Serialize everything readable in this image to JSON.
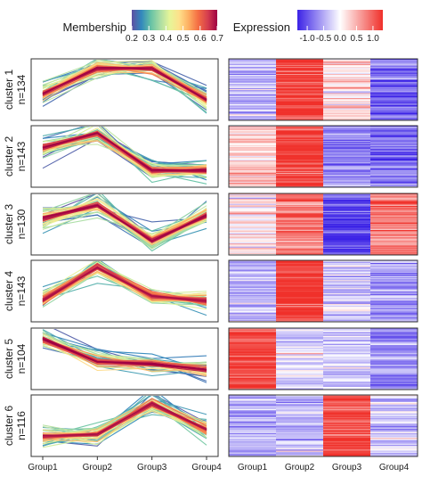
{
  "legends": {
    "membership": {
      "title": "Membership",
      "ticks": [
        "0.2",
        "0.3",
        "0.4",
        "0.5",
        "0.6",
        "0.7"
      ],
      "range": [
        0.2,
        0.7
      ],
      "colors": [
        "#5e4fa2",
        "#3288bd",
        "#66c2a5",
        "#abdda4",
        "#e6f598",
        "#fee08b",
        "#fdae61",
        "#f46d43",
        "#d53e4f",
        "#9e0142"
      ]
    },
    "expression": {
      "title": "Expression",
      "ticks": [
        "-1.0",
        "-0.5",
        "0.0",
        "0.5",
        "1.0"
      ],
      "range": [
        -1.3,
        1.3
      ],
      "colors": [
        "#3b22e6",
        "#ffffff",
        "#f0302a"
      ]
    }
  },
  "chart_data": [
    {
      "type": "line",
      "panel": "cluster-profiles",
      "x": [
        "Group1",
        "Group2",
        "Group3",
        "Group4"
      ],
      "clusters": [
        {
          "label": "cluster 1",
          "n_label": "n=134",
          "n": 134,
          "center": [
            -0.3,
            1.45,
            1.45,
            -0.7
          ]
        },
        {
          "label": "cluster 2",
          "n_label": "n=143",
          "n": 143,
          "center": [
            0.6,
            1.6,
            -0.95,
            -0.95
          ]
        },
        {
          "label": "cluster 3",
          "n_label": "n=130",
          "n": 130,
          "center": [
            0.4,
            1.3,
            -1.1,
            0.6
          ]
        },
        {
          "label": "cluster 4",
          "n_label": "n=143",
          "n": 143,
          "center": [
            -0.6,
            1.65,
            -0.35,
            -0.65
          ]
        },
        {
          "label": "cluster 5",
          "n_label": "n=104",
          "n": 104,
          "center": [
            1.35,
            -0.2,
            -0.35,
            -0.75
          ]
        },
        {
          "label": "cluster 6",
          "n_label": "n=116",
          "n": 116,
          "center": [
            -0.7,
            -0.6,
            1.5,
            -0.25
          ]
        }
      ]
    },
    {
      "type": "heatmap",
      "panel": "expression-heatmap",
      "columns": [
        "Group1",
        "Group2",
        "Group3",
        "Group4"
      ],
      "cluster_means": [
        [
          -0.4,
          1.15,
          0.25,
          -0.85
        ],
        [
          0.3,
          1.2,
          -0.7,
          -0.8
        ],
        [
          0.1,
          0.9,
          -1.1,
          0.85
        ],
        [
          -0.5,
          1.3,
          -0.3,
          -0.6
        ],
        [
          1.2,
          -0.2,
          -0.35,
          -0.7
        ],
        [
          -0.55,
          -0.45,
          1.15,
          -0.35
        ]
      ]
    }
  ]
}
